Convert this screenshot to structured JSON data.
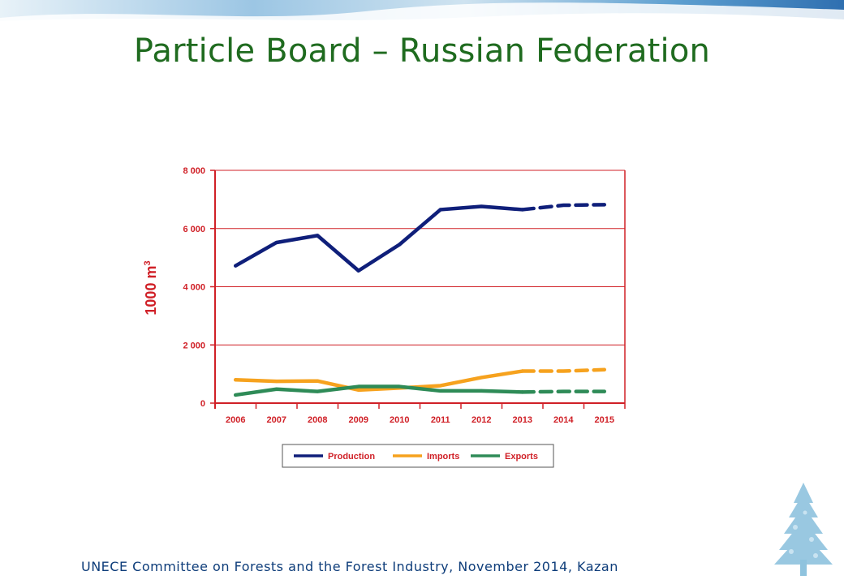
{
  "slide": {
    "title": "Particle Board – Russian Federation",
    "footer": "UNECE Committee on Forests and the Forest Industry, November 2014, Kazan",
    "title_color": "#1f6b1f",
    "footer_color": "#0e3d7a",
    "banner_icon": "water-mosaic-banner",
    "logo_icon": "tree-icon"
  },
  "chart_data": {
    "type": "line",
    "title": "",
    "xlabel": "",
    "ylabel": "1000 m3",
    "ylabel_base": "1000 m",
    "ylabel_sup": "3",
    "categories": [
      "2006",
      "2007",
      "2008",
      "2009",
      "2010",
      "2011",
      "2012",
      "2013",
      "2014",
      "2015"
    ],
    "ylim": [
      0,
      8000
    ],
    "yticks": [
      0,
      2000,
      4000,
      6000,
      8000
    ],
    "ytick_labels": [
      "0",
      "2 000",
      "4 000",
      "6 000",
      "8 000"
    ],
    "grid": true,
    "legend_position": "bottom",
    "forecast_from": "2013",
    "axis_color": "#d02027",
    "series": [
      {
        "name": "Production",
        "color": "#0f1f7a",
        "values": [
          4720,
          5520,
          5760,
          4550,
          5450,
          6650,
          6760,
          6650,
          6800,
          6820
        ]
      },
      {
        "name": "Imports",
        "color": "#f6a21e",
        "values": [
          800,
          750,
          760,
          450,
          520,
          600,
          880,
          1100,
          1100,
          1150
        ]
      },
      {
        "name": "Exports",
        "color": "#2e8b57",
        "values": [
          280,
          480,
          400,
          570,
          570,
          420,
          420,
          380,
          400,
          400
        ]
      }
    ]
  }
}
